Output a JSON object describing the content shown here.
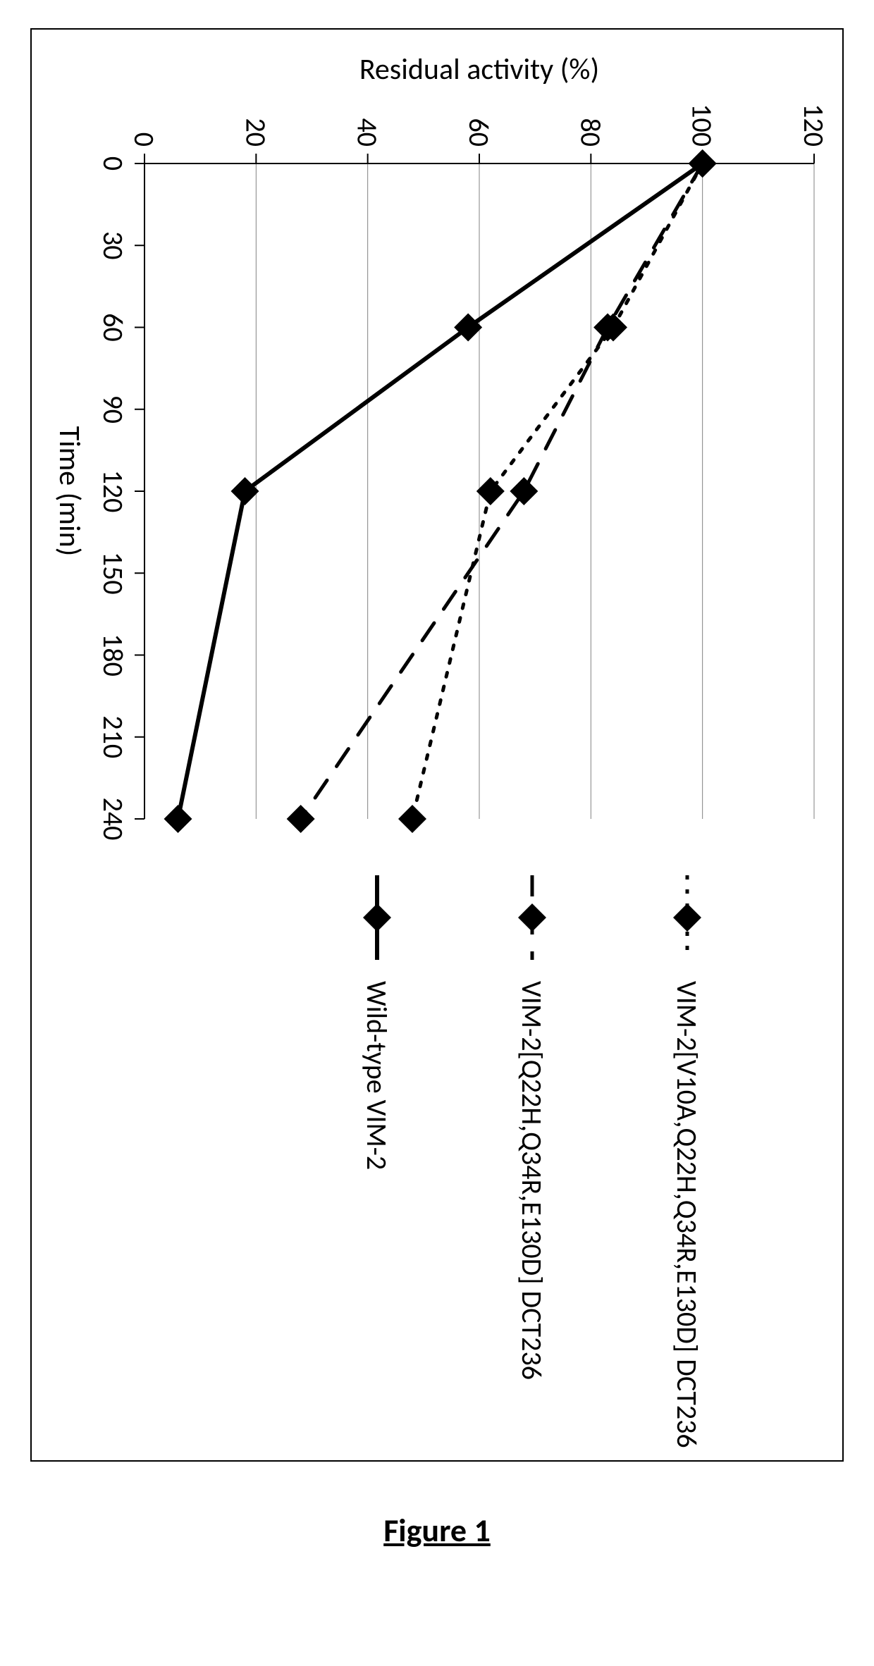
{
  "caption": "Figure 1",
  "chart": {
    "type": "line",
    "background_color": "#ffffff",
    "plot_border_color": "#000000",
    "grid_color": "#808080",
    "grid_width": 1,
    "axis_line_color": "#000000",
    "axis_line_width": 2,
    "tick_label_fontsize": 40,
    "axis_title_fontsize": 42,
    "x": {
      "label": "Time (min)",
      "min": 0,
      "max": 240,
      "ticks": [
        0,
        30,
        60,
        90,
        120,
        150,
        180,
        210,
        240
      ]
    },
    "y": {
      "label": "Residual activity (%)",
      "min": 0,
      "max": 120,
      "ticks": [
        0,
        20,
        40,
        60,
        80,
        100,
        120
      ]
    },
    "marker": {
      "shape": "diamond",
      "size": 20,
      "fill": "#000000"
    },
    "series": [
      {
        "id": "serA",
        "label": "VIM-2[V10A,Q22H,Q34R,E130D] DCT236",
        "line_style": "dot",
        "line_color": "#000000",
        "line_width": 5,
        "marker_color": "#000000",
        "points": [
          {
            "x": 0,
            "y": 100
          },
          {
            "x": 60,
            "y": 84
          },
          {
            "x": 120,
            "y": 62
          },
          {
            "x": 240,
            "y": 48
          }
        ]
      },
      {
        "id": "serB",
        "label": "VIM-2[Q22H,Q34R,E130D] DCT236",
        "line_style": "dash",
        "line_color": "#000000",
        "line_width": 5,
        "marker_color": "#000000",
        "points": [
          {
            "x": 0,
            "y": 100
          },
          {
            "x": 60,
            "y": 83
          },
          {
            "x": 120,
            "y": 68
          },
          {
            "x": 240,
            "y": 28
          }
        ]
      },
      {
        "id": "serC",
        "label": "Wild-type VIM-2",
        "line_style": "solid",
        "line_color": "#000000",
        "line_width": 6,
        "marker_color": "#000000",
        "points": [
          {
            "x": 0,
            "y": 100
          },
          {
            "x": 60,
            "y": 58
          },
          {
            "x": 120,
            "y": 18
          },
          {
            "x": 240,
            "y": 6
          }
        ]
      }
    ],
    "legend": {
      "fontsize": 40,
      "line_length": 120,
      "item_gap": 220
    }
  }
}
